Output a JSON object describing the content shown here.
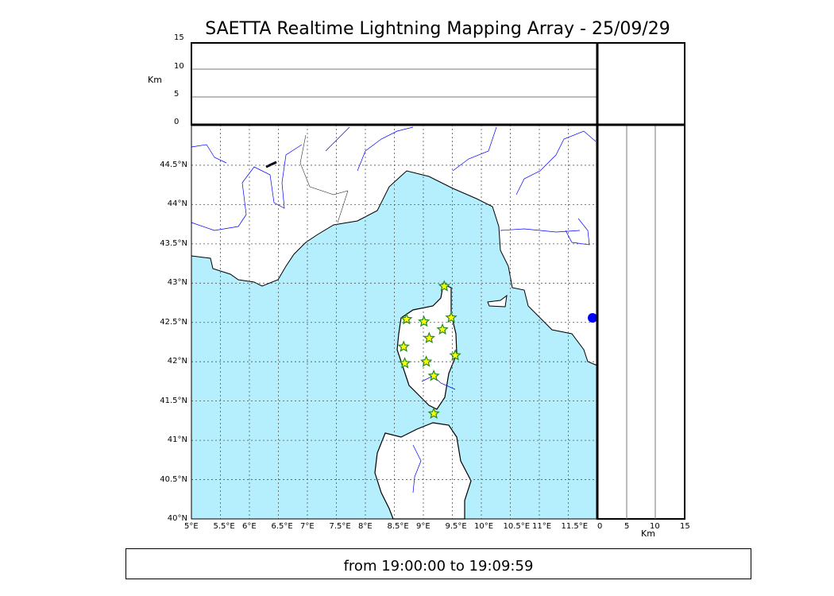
{
  "title": "SAETTA Realtime Lightning Mapping Array - 25/09/29",
  "footer": "from 19:00:00 to 19:09:59",
  "altitude_panel": {
    "ylabel": "Km",
    "ticks": [
      "0",
      "5",
      "10",
      "15"
    ]
  },
  "latalt_panel": {
    "xlabel": "Km",
    "ticks": [
      "0",
      "5",
      "10",
      "15"
    ]
  },
  "map": {
    "lon_ticks": [
      "5°E",
      "5.5°E",
      "6°E",
      "6.5°E",
      "7°E",
      "7.5°E",
      "8°E",
      "8.5°E",
      "9°E",
      "9.5°E",
      "10°E",
      "10.5°E",
      "11°E",
      "11.5°E"
    ],
    "lat_ticks": [
      "40°N",
      "40.5°N",
      "41°N",
      "41.5°N",
      "42°N",
      "42.5°N",
      "43°N",
      "43.5°N",
      "44°N",
      "44.5°N"
    ],
    "lon_range": [
      5,
      12
    ],
    "lat_range": [
      40,
      44.9
    ],
    "sea_color": "#b5eefc",
    "river_color": "#0000ff",
    "marker": "star",
    "marker_fill": "#ffff00",
    "marker_edge": "#228b22"
  },
  "chart_data": {
    "type": "scatter",
    "points": [
      {
        "lon": 9.36,
        "lat": 42.96
      },
      {
        "lon": 8.71,
        "lat": 42.54
      },
      {
        "lon": 9.01,
        "lat": 42.51
      },
      {
        "lon": 9.48,
        "lat": 42.56
      },
      {
        "lon": 9.33,
        "lat": 42.41
      },
      {
        "lon": 9.1,
        "lat": 42.3
      },
      {
        "lon": 8.66,
        "lat": 42.19
      },
      {
        "lon": 9.55,
        "lat": 42.08
      },
      {
        "lon": 8.68,
        "lat": 41.98
      },
      {
        "lon": 9.05,
        "lat": 42.0
      },
      {
        "lon": 9.18,
        "lat": 41.82
      },
      {
        "lon": 9.18,
        "lat": 41.34
      }
    ]
  }
}
